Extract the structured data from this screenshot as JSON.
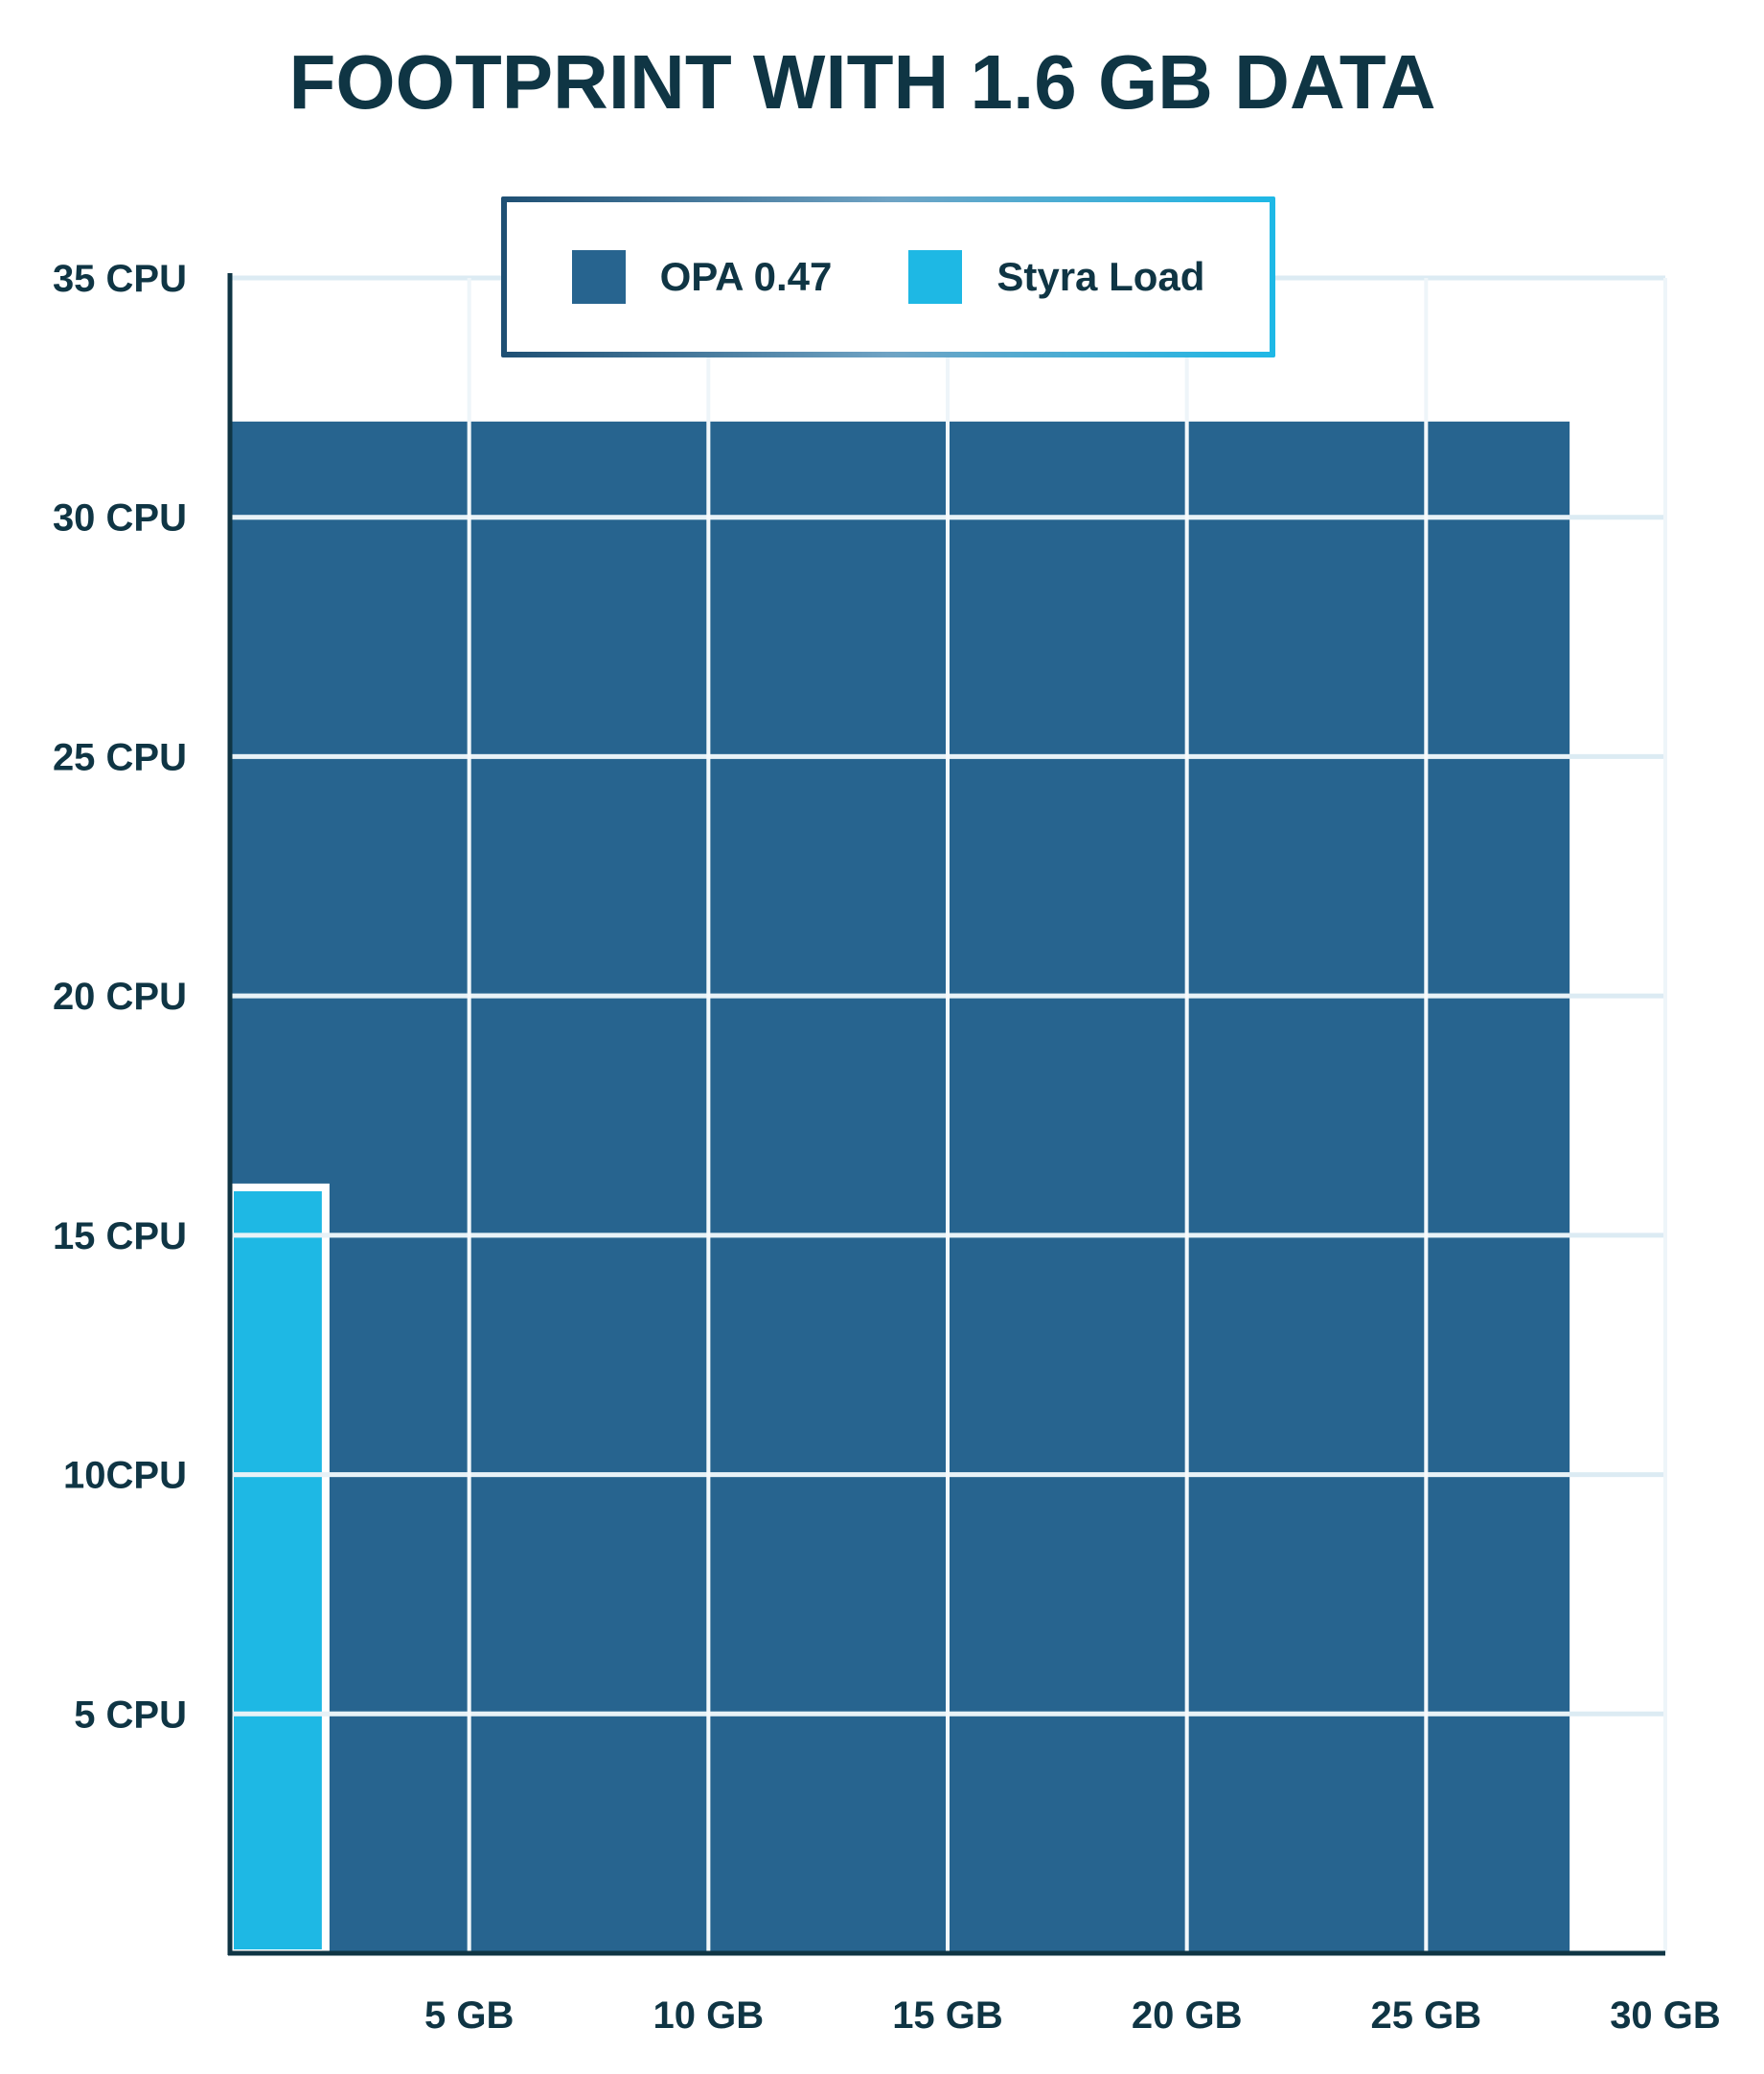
{
  "chart_data": {
    "type": "bar",
    "title": "FOOTPRINT WITH 1.6 GB DATA",
    "xlabel": "",
    "ylabel": "",
    "x_ticks": [
      {
        "value": 5,
        "label": "5 GB"
      },
      {
        "value": 10,
        "label": "10 GB"
      },
      {
        "value": 15,
        "label": "15 GB"
      },
      {
        "value": 20,
        "label": "20 GB"
      },
      {
        "value": 25,
        "label": "25 GB"
      },
      {
        "value": 30,
        "label": "30 GB"
      }
    ],
    "y_ticks": [
      {
        "value": 5,
        "label": "5 CPU"
      },
      {
        "value": 10,
        "label": "10CPU"
      },
      {
        "value": 15,
        "label": "15 CPU"
      },
      {
        "value": 20,
        "label": "20 CPU"
      },
      {
        "value": 25,
        "label": "25 CPU"
      },
      {
        "value": 30,
        "label": "30 CPU"
      },
      {
        "value": 35,
        "label": "35 CPU"
      }
    ],
    "xlim": [
      0,
      30
    ],
    "ylim": [
      0,
      35
    ],
    "grid": true,
    "legend_position": "top-center",
    "series": [
      {
        "name": "OPA 0.47",
        "color": "#27648f",
        "memory_gb": 28,
        "cpu": 32
      },
      {
        "name": "Styra Load",
        "color": "#1eb8e4",
        "memory_gb": 2,
        "cpu": 16
      }
    ]
  }
}
